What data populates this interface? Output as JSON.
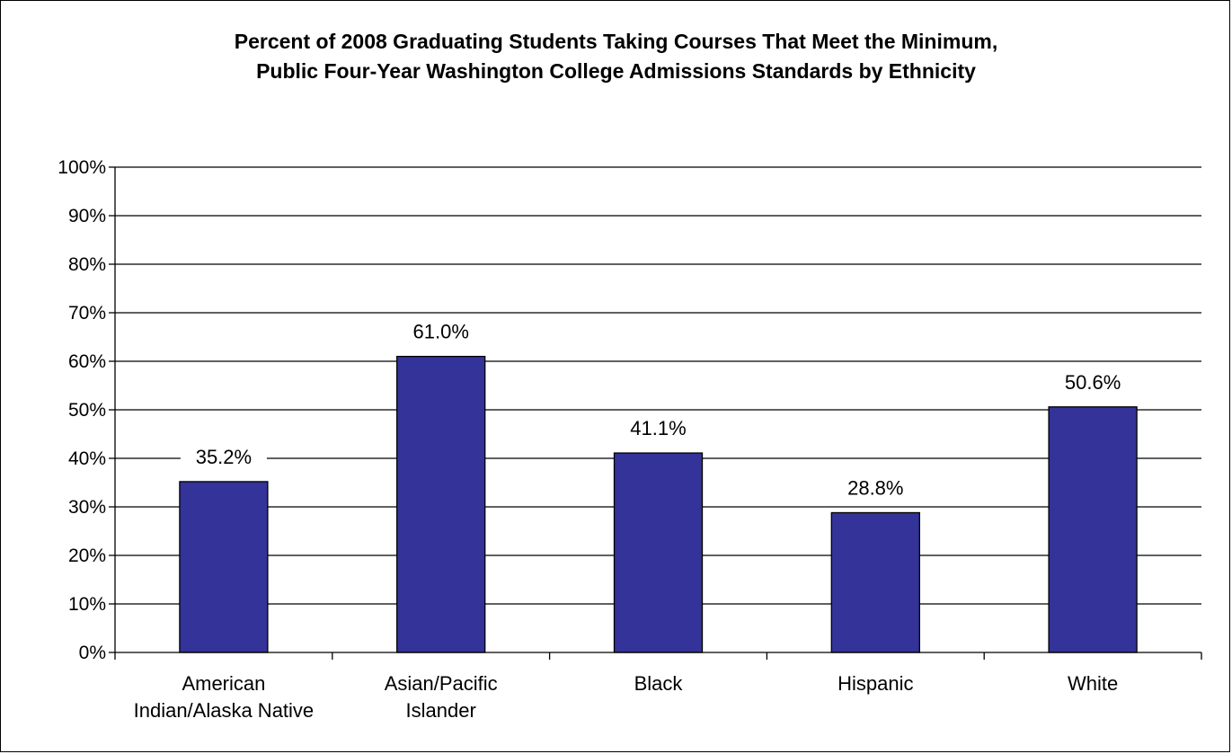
{
  "chart_data": {
    "type": "bar",
    "title_lines": [
      "Percent of 2008 Graduating Students Taking Courses That Meet the Minimum,",
      "Public Four-Year Washington College Admissions Standards by Ethnicity"
    ],
    "categories": [
      [
        "American",
        "Indian/Alaska Native"
      ],
      [
        "Asian/Pacific",
        "Islander"
      ],
      [
        "Black"
      ],
      [
        "Hispanic"
      ],
      [
        "White"
      ]
    ],
    "values": [
      35.2,
      61.0,
      41.1,
      28.8,
      50.6
    ],
    "value_labels": [
      "35.2%",
      "61.0%",
      "41.1%",
      "28.8%",
      "50.6%"
    ],
    "y_ticks": [
      "0%",
      "10%",
      "20%",
      "30%",
      "40%",
      "50%",
      "60%",
      "70%",
      "80%",
      "90%",
      "100%"
    ],
    "ylim": [
      0,
      100
    ],
    "grid": true,
    "legend": "none",
    "colors": {
      "bar": "#333399",
      "bar_stroke": "#000000",
      "grid": "#000000"
    }
  }
}
